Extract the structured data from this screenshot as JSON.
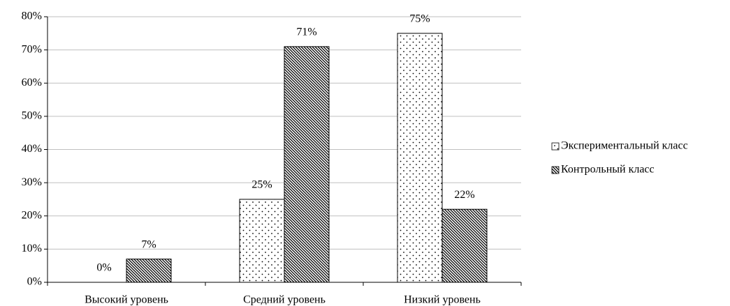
{
  "chart_data": {
    "type": "bar",
    "categories": [
      "Высокий уровень",
      "Средний уровень",
      "Низкий уровень"
    ],
    "series": [
      {
        "name": "Экспериментальный класс",
        "color": "#000000",
        "pattern": "dots",
        "values": [
          0,
          25,
          75
        ],
        "value_labels": [
          "0%",
          "25%",
          "75%"
        ]
      },
      {
        "name": "Контрольный класс",
        "color": "#000000",
        "pattern": "hatch",
        "values": [
          7,
          71,
          22
        ],
        "value_labels": [
          "7%",
          "71%",
          "22%"
        ]
      }
    ],
    "ylim": [
      0,
      80
    ],
    "yticks": [
      {
        "value": 0,
        "label": "0%"
      },
      {
        "value": 10,
        "label": "10%"
      },
      {
        "value": 20,
        "label": "20%"
      },
      {
        "value": 30,
        "label": "30%"
      },
      {
        "value": 40,
        "label": "40%"
      },
      {
        "value": 50,
        "label": "50%"
      },
      {
        "value": 60,
        "label": "60%"
      },
      {
        "value": 70,
        "label": "70%"
      },
      {
        "value": 80,
        "label": "80%"
      }
    ],
    "grid": true,
    "legend": "right"
  }
}
